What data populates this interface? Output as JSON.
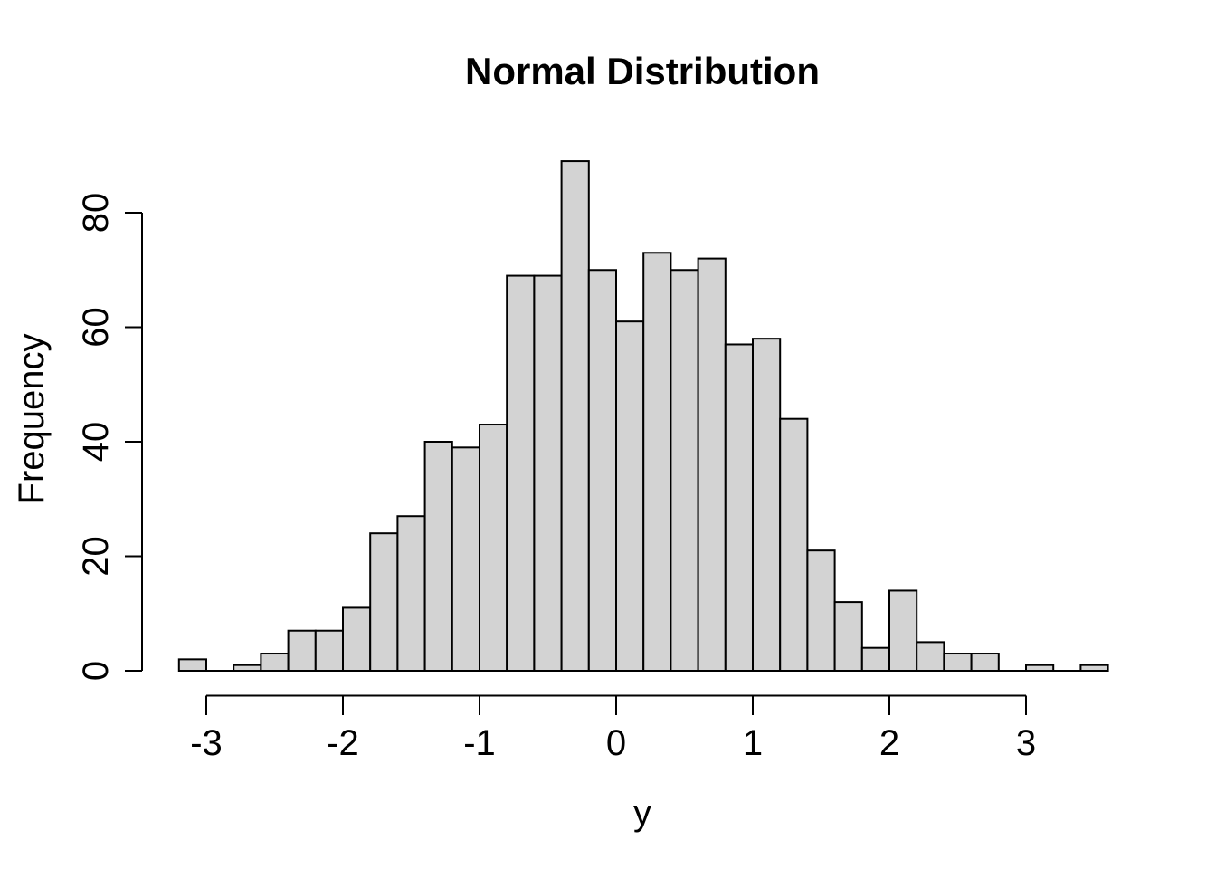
{
  "chart_data": {
    "type": "bar",
    "subtype": "histogram",
    "title": "Normal Distribution",
    "xlabel": "y",
    "ylabel": "Frequency",
    "bin_start": -3.2,
    "bin_width": 0.2,
    "counts": [
      2,
      0,
      1,
      3,
      7,
      7,
      11,
      24,
      27,
      40,
      39,
      43,
      69,
      69,
      89,
      70,
      61,
      73,
      70,
      72,
      57,
      58,
      44,
      21,
      12,
      4,
      14,
      5,
      3,
      3,
      0,
      1,
      0,
      1
    ],
    "x_ticks": [
      -3,
      -2,
      -1,
      0,
      1,
      2,
      3
    ],
    "y_ticks": [
      0,
      20,
      40,
      60,
      80
    ],
    "xlim": [
      -3.2,
      3.6
    ],
    "ylim": [
      0,
      89
    ],
    "grid": false,
    "legend": "none",
    "colors": {
      "bar_fill": "#d3d3d3",
      "bar_stroke": "#000000",
      "axis": "#000000",
      "text": "#000000",
      "background": "#ffffff"
    }
  }
}
